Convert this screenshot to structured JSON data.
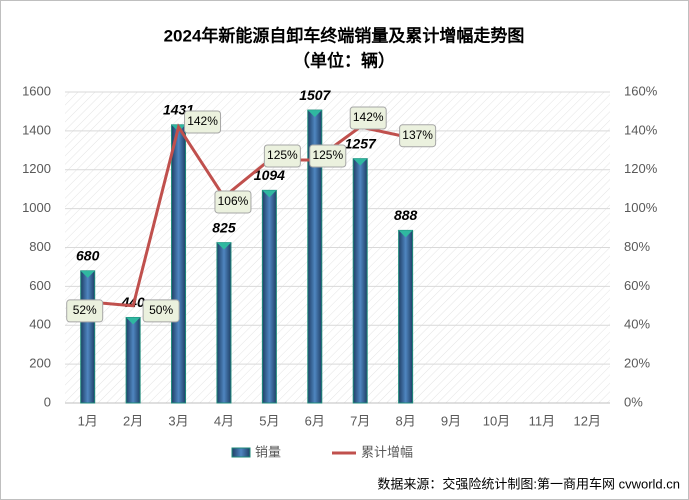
{
  "chart_data": {
    "type": "bar-line",
    "title": "2024年新能源自卸车终端销量及累计增幅走势图",
    "subtitle": "（单位：辆）",
    "source": "数据来源：交强险统计制图:第一商用车网 cvworld.cn",
    "categories": [
      "1月",
      "2月",
      "3月",
      "4月",
      "5月",
      "6月",
      "7月",
      "8月",
      "9月",
      "10月",
      "11月",
      "12月"
    ],
    "series": [
      {
        "name": "销量",
        "color": "#2e5d8e",
        "values": [
          680,
          440,
          1431,
          825,
          1094,
          1507,
          1257,
          888,
          null,
          null,
          null,
          null
        ]
      },
      {
        "name": "累计增幅",
        "color": "#c0504d",
        "axis": "y2",
        "values": [
          52,
          50,
          142,
          106,
          125,
          125,
          142,
          137,
          null,
          null,
          null,
          null
        ],
        "value_labels": [
          "52%",
          "50%",
          "142%",
          "106%",
          "125%",
          "125%",
          "142%",
          "137%",
          null,
          null,
          null,
          null
        ]
      }
    ],
    "ylim": [
      0,
      1600
    ],
    "yticks": [
      0,
      200,
      400,
      600,
      800,
      1000,
      1200,
      1400,
      1600
    ],
    "y2lim": [
      0,
      160
    ],
    "y2ticks": [
      {
        "value": 0,
        "label": "0%"
      },
      {
        "value": 20,
        "label": "20%"
      },
      {
        "value": 40,
        "label": "40%"
      },
      {
        "value": 60,
        "label": "60%"
      },
      {
        "value": 80,
        "label": "80%"
      },
      {
        "value": 100,
        "label": "100%"
      },
      {
        "value": 120,
        "label": "120%"
      },
      {
        "value": 140,
        "label": "140%"
      },
      {
        "value": 160,
        "label": "160%"
      }
    ],
    "grid": true
  }
}
